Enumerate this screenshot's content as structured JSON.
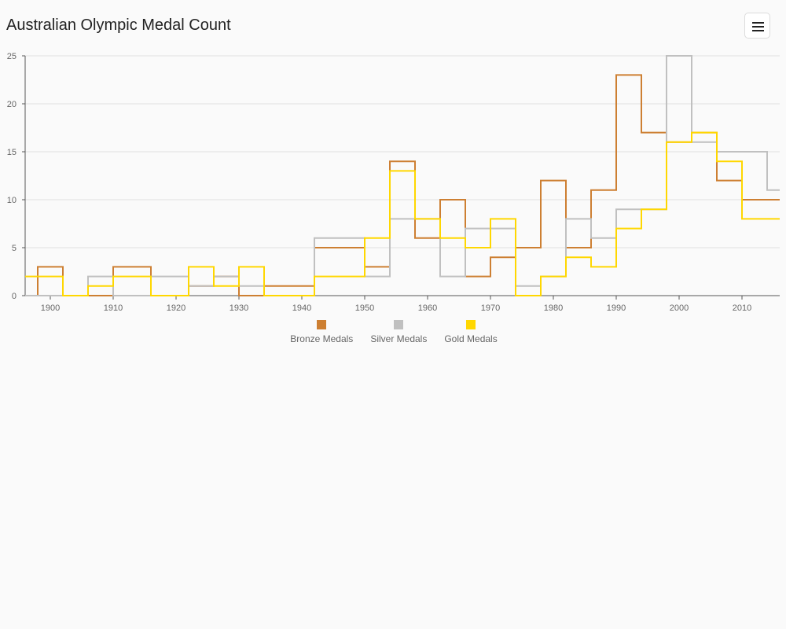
{
  "title": "Australian Olympic Medal Count",
  "menu": {
    "icon": "hamburger-menu-icon"
  },
  "chart_data": {
    "type": "line",
    "step": "center",
    "title": "Australian Olympic Medal Count",
    "xlabel": "",
    "ylabel": "",
    "xlim": [
      1896,
      2016
    ],
    "ylim": [
      0,
      25
    ],
    "x_ticks": [
      "1900",
      "1910",
      "1920",
      "1930",
      "1940",
      "1950",
      "1960",
      "1970",
      "1980",
      "1990",
      "2000",
      "2010"
    ],
    "y_ticks": [
      "0",
      "5",
      "10",
      "15",
      "20",
      "25"
    ],
    "grid": true,
    "legend_position": "bottom-center",
    "x": [
      1896,
      1900,
      1904,
      1908,
      1912,
      1920,
      1924,
      1928,
      1932,
      1936,
      1948,
      1952,
      1956,
      1960,
      1964,
      1968,
      1972,
      1976,
      1980,
      1984,
      1988,
      1992,
      1996,
      2000,
      2004,
      2008,
      2012,
      2016
    ],
    "series": [
      {
        "name": "Bronze Medals",
        "color": "#cd7f32",
        "values": [
          0,
          3,
          0,
          0,
          3,
          0,
          1,
          2,
          0,
          1,
          5,
          3,
          14,
          6,
          10,
          2,
          4,
          5,
          12,
          5,
          11,
          23,
          17,
          16,
          17,
          12,
          10,
          10
        ]
      },
      {
        "name": "Silver Medals",
        "color": "#c0c0c0",
        "values": [
          0,
          0,
          0,
          2,
          0,
          2,
          1,
          2,
          1,
          0,
          6,
          2,
          8,
          8,
          2,
          7,
          7,
          1,
          2,
          8,
          6,
          9,
          9,
          25,
          16,
          15,
          15,
          11
        ]
      },
      {
        "name": "Gold Medals",
        "color": "#ffd700",
        "values": [
          2,
          2,
          0,
          1,
          2,
          0,
          3,
          1,
          3,
          0,
          2,
          6,
          13,
          8,
          6,
          5,
          8,
          0,
          2,
          4,
          3,
          7,
          9,
          16,
          17,
          14,
          8,
          8
        ]
      }
    ]
  }
}
